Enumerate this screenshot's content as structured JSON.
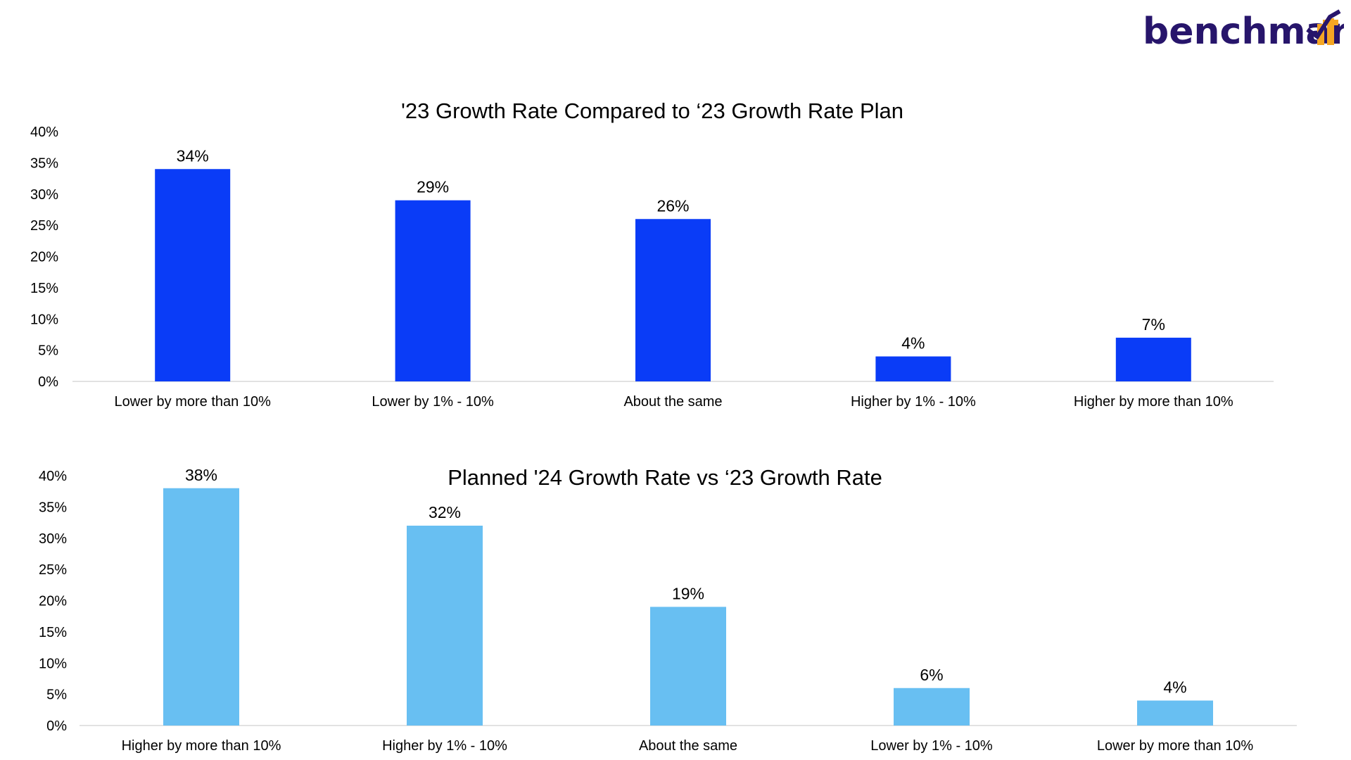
{
  "logo": {
    "word": "benchmark",
    "it": "it",
    "colors": {
      "word": "#27156b",
      "accent": "#f5a623"
    }
  },
  "chart_data": [
    {
      "type": "bar",
      "title": "'23 Growth Rate Compared to ‘23 Growth Rate Plan",
      "categories": [
        "Lower by more than 10%",
        "Lower by 1% - 10%",
        "About the same",
        "Higher by 1% - 10%",
        "Higher by more than 10%"
      ],
      "values": [
        34,
        29,
        26,
        4,
        7
      ],
      "data_labels": [
        "34%",
        "29%",
        "26%",
        "4%",
        "7%"
      ],
      "ylim": [
        0,
        40
      ],
      "yticks": [
        "0%",
        "5%",
        "10%",
        "15%",
        "20%",
        "25%",
        "30%",
        "35%",
        "40%"
      ],
      "xlabel": "",
      "ylabel": "",
      "grid": false,
      "color": "#0a3cf7"
    },
    {
      "type": "bar",
      "title": "Planned '24 Growth Rate vs ‘23 Growth Rate",
      "categories": [
        "Higher by more than 10%",
        "Higher by 1% - 10%",
        "About the same",
        "Lower by 1% - 10%",
        "Lower by more than 10%"
      ],
      "values": [
        38,
        32,
        19,
        6,
        4
      ],
      "data_labels": [
        "38%",
        "32%",
        "19%",
        "6%",
        "4%"
      ],
      "ylim": [
        0,
        40
      ],
      "yticks": [
        "0%",
        "5%",
        "10%",
        "15%",
        "20%",
        "25%",
        "30%",
        "35%",
        "40%"
      ],
      "xlabel": "",
      "ylabel": "",
      "grid": false,
      "color": "#68bff2"
    }
  ]
}
